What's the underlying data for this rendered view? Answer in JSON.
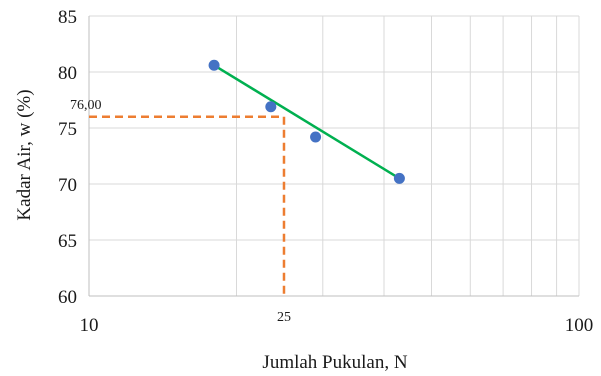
{
  "chart_data": {
    "type": "scatter",
    "title": "",
    "xlabel": "Jumlah Pukulan, N",
    "ylabel": "Kadar Air, w (%)",
    "xscale": "log",
    "xlim": [
      10,
      100
    ],
    "ylim": [
      60,
      85
    ],
    "grid": true,
    "x_tick_labels": [
      "10",
      "100"
    ],
    "y_tick_labels": [
      "60",
      "65",
      "70",
      "75",
      "80",
      "85"
    ],
    "series": [
      {
        "points": [
          {
            "x": 18,
            "y": 80.6
          },
          {
            "x": 23.5,
            "y": 76.9
          },
          {
            "x": 29,
            "y": 74.2
          },
          {
            "x": 43,
            "y": 70.5
          }
        ]
      }
    ],
    "trendline": {
      "x": [
        18,
        43
      ],
      "y": [
        80.6,
        70.5
      ]
    },
    "reference": {
      "x": 25,
      "y": 76.0,
      "x_label": "25",
      "y_label": "76,00"
    },
    "colors": {
      "marker": "#4472c4",
      "trendline": "#00b050",
      "reference": "#ed7d31",
      "grid": "#d9d9d9"
    }
  }
}
